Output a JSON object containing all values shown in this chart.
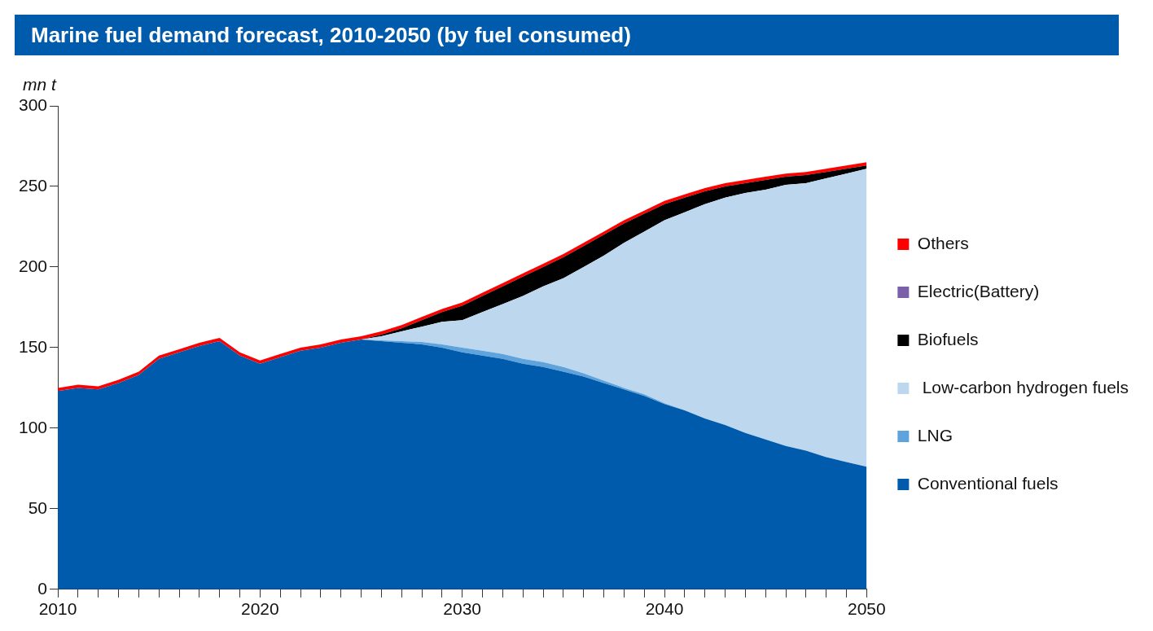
{
  "chart_data": {
    "type": "area",
    "title": "Marine fuel demand forecast, 2010-2050 (by fuel consumed)",
    "ylabel": "mn t",
    "x": [
      2010,
      2011,
      2012,
      2013,
      2014,
      2015,
      2016,
      2017,
      2018,
      2019,
      2020,
      2021,
      2022,
      2023,
      2024,
      2025,
      2026,
      2027,
      2028,
      2029,
      2030,
      2031,
      2032,
      2033,
      2034,
      2035,
      2036,
      2037,
      2038,
      2039,
      2040,
      2041,
      2042,
      2043,
      2044,
      2045,
      2046,
      2047,
      2048,
      2049,
      2050
    ],
    "stacked": true,
    "legend": "right",
    "grid": false,
    "marker": "none",
    "xlim": [
      2010,
      2050
    ],
    "xticks": [
      2010,
      {
        "value": 2011,
        "label": null
      },
      {
        "value": 2012,
        "label": null
      },
      {
        "value": 2013,
        "label": null
      },
      {
        "value": 2014,
        "label": null
      },
      {
        "value": 2015,
        "label": null
      },
      {
        "value": 2016,
        "label": null
      },
      {
        "value": 2017,
        "label": null
      },
      {
        "value": 2018,
        "label": null
      },
      {
        "value": 2019,
        "label": null
      },
      2020,
      {
        "value": 2021,
        "label": null
      },
      {
        "value": 2022,
        "label": null
      },
      {
        "value": 2023,
        "label": null
      },
      {
        "value": 2024,
        "label": null
      },
      {
        "value": 2025,
        "label": null
      },
      {
        "value": 2026,
        "label": null
      },
      {
        "value": 2027,
        "label": null
      },
      {
        "value": 2028,
        "label": null
      },
      {
        "value": 2029,
        "label": null
      },
      2030,
      {
        "value": 2031,
        "label": null
      },
      {
        "value": 2032,
        "label": null
      },
      {
        "value": 2033,
        "label": null
      },
      {
        "value": 2034,
        "label": null
      },
      {
        "value": 2035,
        "label": null
      },
      {
        "value": 2036,
        "label": null
      },
      {
        "value": 2037,
        "label": null
      },
      {
        "value": 2038,
        "label": null
      },
      {
        "value": 2039,
        "label": null
      },
      2040,
      {
        "value": 2041,
        "label": null
      },
      {
        "value": 2042,
        "label": null
      },
      {
        "value": 2043,
        "label": null
      },
      {
        "value": 2044,
        "label": null
      },
      {
        "value": 2045,
        "label": null
      },
      {
        "value": 2046,
        "label": null
      },
      {
        "value": 2047,
        "label": null
      },
      {
        "value": 2048,
        "label": null
      },
      {
        "value": 2049,
        "label": null
      },
      2050
    ],
    "ylim": [
      0,
      300
    ],
    "yticks": [
      0,
      50,
      100,
      150,
      200,
      250,
      300
    ],
    "series": [
      {
        "name": "Conventional fuels",
        "color": "#005bac",
        "values": [
          123,
          125,
          124,
          128,
          133,
          143,
          147,
          151,
          154,
          145,
          140,
          144,
          148,
          150,
          153,
          155,
          154,
          153,
          152,
          150,
          147,
          145,
          143,
          140,
          138,
          135,
          132,
          128,
          124,
          120,
          115,
          111,
          106,
          102,
          97,
          93,
          89,
          86,
          82,
          79,
          76
        ]
      },
      {
        "name": "LNG",
        "color": "#5fa3dc",
        "values": [
          0,
          0,
          0,
          0,
          0,
          0,
          0,
          0,
          0,
          0,
          0,
          0,
          0,
          0,
          0,
          0,
          0.5,
          1,
          1.5,
          2,
          3,
          3,
          3,
          3,
          3,
          3,
          2,
          1.5,
          1,
          1,
          0.5,
          0,
          0,
          0,
          0,
          0,
          0,
          0,
          0,
          0,
          0
        ]
      },
      {
        "name": " Low-carbon hydrogen fuels",
        "color": "#bdd7ee",
        "values": [
          0,
          0,
          0,
          0,
          0,
          0,
          0,
          0,
          0,
          0,
          0,
          0,
          0,
          0,
          0,
          0,
          2.5,
          6,
          9.5,
          14,
          17,
          24,
          31,
          39,
          47,
          55,
          66,
          77.5,
          90,
          101,
          113.5,
          123,
          133,
          141,
          149,
          155,
          162,
          166,
          173,
          179,
          185
        ]
      },
      {
        "name": "Biofuels",
        "color": "#000000",
        "values": [
          0,
          0,
          0,
          0,
          0,
          0,
          0,
          0,
          0,
          0,
          0,
          0,
          0,
          0,
          0,
          0,
          1,
          2,
          4,
          6,
          9,
          10,
          11,
          12,
          12,
          13,
          13,
          13,
          12,
          11,
          10,
          9,
          8,
          7,
          6,
          6,
          5,
          5,
          4,
          3,
          2
        ]
      },
      {
        "name": "Electric(Battery)",
        "color": "#7b5fa8",
        "values": [
          null,
          null,
          null,
          null,
          null,
          null,
          null,
          null,
          null,
          null,
          null,
          null,
          null,
          null,
          null,
          null,
          null,
          null,
          null,
          null,
          null,
          null,
          null,
          null,
          null,
          null,
          null,
          null,
          null,
          null,
          null,
          null,
          null,
          null,
          null,
          null,
          null,
          null,
          null,
          null,
          null
        ]
      },
      {
        "name": "Others",
        "color": "#ff0000",
        "values": [
          2,
          2,
          2,
          2,
          2,
          2,
          2,
          2,
          2,
          2,
          2,
          2,
          2,
          2,
          2,
          2,
          2,
          2,
          2,
          2,
          2,
          2,
          2,
          2,
          2,
          2,
          2,
          2,
          2,
          2,
          2,
          2,
          2,
          2,
          2,
          2,
          2,
          2,
          2,
          2,
          2
        ]
      }
    ]
  }
}
